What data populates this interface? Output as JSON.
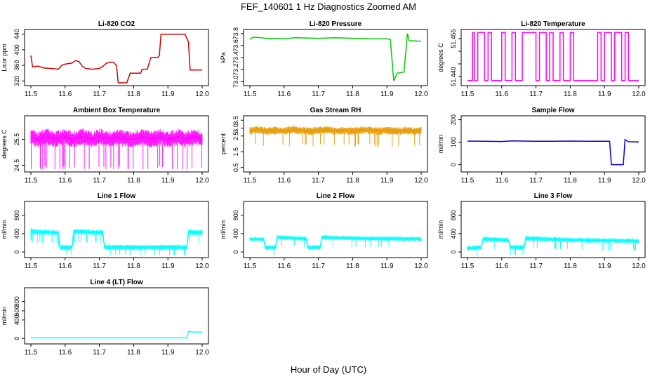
{
  "page": {
    "title": "FEF_140601  1 Hz Diagnostics Zoomed AM",
    "xlabel": "Hour of Day (UTC)"
  },
  "chart_data": [
    {
      "type": "line",
      "title": "Li-820 CO2",
      "ylabel": "Licor ppm",
      "color": "#cc0000",
      "xlim": [
        11.5,
        12.0
      ],
      "ylim": [
        315,
        445
      ],
      "xticks": [
        "11.5",
        "11.6",
        "11.7",
        "11.8",
        "11.9",
        "12.0"
      ],
      "yticks": [
        {
          "v": 320,
          "label": "320"
        },
        {
          "v": 360,
          "label": "360"
        },
        {
          "v": 400,
          "label": "400"
        },
        {
          "v": 440,
          "label": "440"
        }
      ],
      "x": [
        11.5,
        11.505,
        11.52,
        11.54,
        11.56,
        11.58,
        11.59,
        11.6,
        11.62,
        11.63,
        11.64,
        11.65,
        11.66,
        11.68,
        11.7,
        11.71,
        11.72,
        11.73,
        11.74,
        11.75,
        11.755,
        11.78,
        11.79,
        11.82,
        11.825,
        11.84,
        11.85,
        11.87,
        11.875,
        11.88,
        11.95,
        11.96,
        11.965,
        12.0
      ],
      "y": [
        385,
        356,
        358,
        353,
        352,
        350,
        360,
        363,
        366,
        372,
        370,
        358,
        352,
        350,
        352,
        357,
        365,
        368,
        368,
        360,
        315,
        315,
        340,
        340,
        350,
        350,
        380,
        380,
        385,
        440,
        440,
        420,
        348,
        348
      ]
    },
    {
      "type": "line",
      "title": "Li-820 Pressure",
      "ylabel": "kPa",
      "color": "#00cc00",
      "xlim": [
        11.5,
        12.0
      ],
      "ylim": [
        72.98,
        73.82
      ],
      "xticks": [
        "11.5",
        "11.6",
        "11.7",
        "11.8",
        "11.9",
        "12.0"
      ],
      "yticks": [
        {
          "v": 73.0,
          "label": "73.0"
        },
        {
          "v": 73.2,
          "label": "73.2"
        },
        {
          "v": 73.4,
          "label": "73.4"
        },
        {
          "v": 73.6,
          "label": "73.6"
        },
        {
          "v": 73.8,
          "label": "73.8"
        }
      ],
      "x": [
        11.5,
        11.51,
        11.55,
        11.6,
        11.63,
        11.64,
        11.7,
        11.75,
        11.8,
        11.85,
        11.9,
        11.91,
        11.92,
        11.93,
        11.95,
        11.96,
        11.965,
        11.97,
        12.0
      ],
      "y": [
        73.7,
        73.74,
        73.72,
        73.71,
        73.73,
        73.73,
        73.72,
        73.73,
        73.72,
        73.71,
        73.71,
        73.7,
        73.01,
        73.14,
        73.16,
        73.8,
        73.68,
        73.68,
        73.67
      ]
    },
    {
      "type": "line",
      "title": "Li-820 Temperature",
      "ylabel": "degrees C",
      "color": "#ff00ff",
      "xlim": [
        11.5,
        12.0
      ],
      "ylim": [
        51.4375,
        51.4575
      ],
      "xticks": [
        "11.5",
        "11.6",
        "11.7",
        "11.8",
        "11.9",
        "12.0"
      ],
      "yticks": [
        {
          "v": 51.44,
          "label": "51.440"
        },
        {
          "v": 51.445,
          "label": ""
        },
        {
          "v": 51.45,
          "label": ""
        },
        {
          "v": 51.455,
          "label": "51.455"
        }
      ],
      "x": [
        11.5,
        11.515,
        11.515,
        11.52,
        11.52,
        11.53,
        11.53,
        11.55,
        11.55,
        11.56,
        11.56,
        11.57,
        11.57,
        11.6,
        11.6,
        11.61,
        11.61,
        11.63,
        11.63,
        11.64,
        11.64,
        11.66,
        11.66,
        11.7,
        11.7,
        11.71,
        11.71,
        11.73,
        11.73,
        11.74,
        11.74,
        11.75,
        11.75,
        11.77,
        11.77,
        11.78,
        11.78,
        11.8,
        11.8,
        11.81,
        11.81,
        11.88,
        11.88,
        11.89,
        11.89,
        11.9,
        11.9,
        11.92,
        11.92,
        11.93,
        11.93,
        11.95,
        11.95,
        11.96,
        11.96,
        11.97,
        11.97,
        12.0
      ],
      "y": [
        51.4384,
        51.4384,
        51.4574,
        51.4574,
        51.4384,
        51.4384,
        51.4574,
        51.4574,
        51.4384,
        51.4384,
        51.4574,
        51.4574,
        51.4384,
        51.4384,
        51.4574,
        51.4574,
        51.4384,
        51.4384,
        51.4574,
        51.4574,
        51.4384,
        51.4384,
        51.4574,
        51.4574,
        51.4384,
        51.4384,
        51.4574,
        51.4574,
        51.4384,
        51.4384,
        51.4574,
        51.4574,
        51.4384,
        51.4384,
        51.4574,
        51.4574,
        51.4384,
        51.4384,
        51.4574,
        51.4574,
        51.4384,
        51.4384,
        51.4574,
        51.4574,
        51.4384,
        51.4384,
        51.4574,
        51.4574,
        51.4384,
        51.4384,
        51.4574,
        51.4574,
        51.4384,
        51.4384,
        51.4574,
        51.4574,
        51.4384,
        51.4384
      ]
    },
    {
      "type": "line",
      "title": "Ambient Box Temperature",
      "ylabel": "degrees C",
      "color": "#ff00ff",
      "xlim": [
        11.5,
        12.0
      ],
      "ylim": [
        24.35,
        26.3
      ],
      "xticks": [
        "11.5",
        "11.6",
        "11.7",
        "11.8",
        "11.9",
        "12.0"
      ],
      "yticks": [
        {
          "v": 24.5,
          "label": "24.5"
        },
        {
          "v": 25.5,
          "label": "25.5"
        }
      ],
      "x": [
        11.5,
        11.52,
        11.55,
        11.57,
        11.6,
        11.62,
        11.65,
        11.68,
        11.7,
        11.73,
        11.75,
        11.78,
        11.8,
        11.83,
        11.85,
        11.88,
        11.9,
        11.93,
        11.95,
        11.98,
        12.0
      ],
      "y": [
        25.6,
        25.5,
        25.6,
        25.5,
        25.6,
        25.5,
        25.6,
        25.5,
        25.6,
        25.5,
        25.6,
        25.5,
        25.5,
        25.6,
        25.5,
        25.6,
        25.5,
        25.6,
        25.5,
        25.6,
        25.5
      ],
      "band": 0.32
    },
    {
      "type": "line",
      "title": "Gas Stream RH",
      "ylabel": "percent",
      "color": "#e69a00",
      "xlim": [
        11.5,
        12.0
      ],
      "ylim": [
        0.4,
        3.6
      ],
      "xticks": [
        "11.5",
        "11.6",
        "11.7",
        "11.8",
        "11.9",
        "12.0"
      ],
      "yticks": [
        {
          "v": 0.5,
          "label": "0.5"
        },
        {
          "v": 1.5,
          "label": "1.5"
        },
        {
          "v": 2.5,
          "label": "2.5"
        },
        {
          "v": 3.0,
          "label": "3.0"
        },
        {
          "v": 3.5,
          "label": "3.5"
        }
      ],
      "x": [
        11.5,
        11.52,
        11.55,
        11.57,
        11.6,
        11.62,
        11.65,
        11.68,
        11.7,
        11.73,
        11.75,
        11.78,
        11.8,
        11.83,
        11.85,
        11.88,
        11.9,
        11.93,
        11.95,
        11.98,
        12.0
      ],
      "y": [
        2.8,
        2.9,
        2.8,
        2.85,
        2.8,
        2.9,
        2.85,
        2.8,
        2.85,
        2.9,
        2.8,
        2.85,
        2.8,
        2.9,
        2.85,
        2.8,
        2.85,
        2.8,
        2.85,
        2.8,
        2.85
      ],
      "band": 0.25
    },
    {
      "type": "line",
      "title": "Sample Flow",
      "ylabel": "ml/min",
      "color": "#0000cc",
      "xlim": [
        11.5,
        12.0
      ],
      "ylim": [
        -20,
        205
      ],
      "xticks": [
        "11.5",
        "11.6",
        "11.7",
        "11.8",
        "11.9",
        "12.0"
      ],
      "yticks": [
        {
          "v": 0,
          "label": "0"
        },
        {
          "v": 100,
          "label": "100"
        },
        {
          "v": 200,
          "label": "200"
        }
      ],
      "x": [
        11.5,
        11.55,
        11.6,
        11.63,
        11.7,
        11.75,
        11.8,
        11.85,
        11.915,
        11.92,
        11.955,
        11.96,
        11.97,
        12.0
      ],
      "y": [
        105,
        104,
        103,
        106,
        104,
        104,
        105,
        104,
        104,
        0,
        0,
        112,
        102,
        101
      ]
    },
    {
      "type": "line",
      "title": "Line 1 Flow",
      "ylabel": "ml/min",
      "color": "#00ffff",
      "xlim": [
        11.5,
        12.0
      ],
      "ylim": [
        -60,
        1040
      ],
      "xticks": [
        "11.5",
        "11.6",
        "11.7",
        "11.8",
        "11.9",
        "12.0"
      ],
      "yticks": [
        {
          "v": 0,
          "label": "0"
        },
        {
          "v": 400,
          "label": "400"
        },
        {
          "v": 800,
          "label": "800"
        }
      ],
      "x": [
        11.5,
        11.505,
        11.58,
        11.585,
        11.62,
        11.625,
        11.71,
        11.715,
        11.955,
        11.96,
        12.0
      ],
      "y": [
        480,
        440,
        420,
        100,
        100,
        450,
        420,
        100,
        100,
        430,
        420
      ],
      "band": 60
    },
    {
      "type": "line",
      "title": "Line 2 Flow",
      "ylabel": "ml/min",
      "color": "#00ffff",
      "xlim": [
        11.5,
        12.0
      ],
      "ylim": [
        -60,
        1040
      ],
      "xticks": [
        "11.5",
        "11.6",
        "11.7",
        "11.8",
        "11.9",
        "12.0"
      ],
      "yticks": [
        {
          "v": 0,
          "label": "0"
        },
        {
          "v": 400,
          "label": "400"
        },
        {
          "v": 800,
          "label": "800"
        }
      ],
      "x": [
        11.5,
        11.54,
        11.545,
        11.575,
        11.58,
        11.665,
        11.67,
        11.705,
        11.71,
        11.8,
        11.9,
        12.0
      ],
      "y": [
        280,
        280,
        100,
        100,
        320,
        290,
        100,
        100,
        320,
        300,
        290,
        280
      ],
      "band": 50
    },
    {
      "type": "line",
      "title": "Line 3 Flow",
      "ylabel": "ml/min",
      "color": "#00ffff",
      "xlim": [
        11.5,
        12.0
      ],
      "ylim": [
        -60,
        1040
      ],
      "xticks": [
        "11.5",
        "11.6",
        "11.7",
        "11.8",
        "11.9",
        "12.0"
      ],
      "yticks": [
        {
          "v": 0,
          "label": "0"
        },
        {
          "v": 400,
          "label": "400"
        },
        {
          "v": 800,
          "label": "800"
        }
      ],
      "x": [
        11.5,
        11.54,
        11.545,
        11.62,
        11.625,
        11.665,
        11.67,
        11.8,
        11.9,
        12.0
      ],
      "y": [
        80,
        100,
        280,
        260,
        100,
        100,
        300,
        260,
        250,
        240
      ],
      "band": 55
    },
    {
      "type": "line",
      "title": "Line 4 (LT) Flow",
      "ylabel": "ml/min",
      "color": "#00ffff",
      "xlim": [
        11.5,
        12.0
      ],
      "ylim": [
        -60,
        1040
      ],
      "xticks": [
        "11.5",
        "11.6",
        "11.7",
        "11.8",
        "11.9",
        "12.0"
      ],
      "yticks": [
        {
          "v": 0,
          "label": "0"
        },
        {
          "v": 400,
          "label": "400"
        },
        {
          "v": 600,
          "label": "600"
        },
        {
          "v": 800,
          "label": "800"
        }
      ],
      "x": [
        11.5,
        11.6,
        11.7,
        11.8,
        11.9,
        11.955,
        11.96,
        11.97,
        12.0
      ],
      "y": [
        10,
        10,
        10,
        10,
        10,
        10,
        150,
        140,
        135
      ]
    }
  ]
}
